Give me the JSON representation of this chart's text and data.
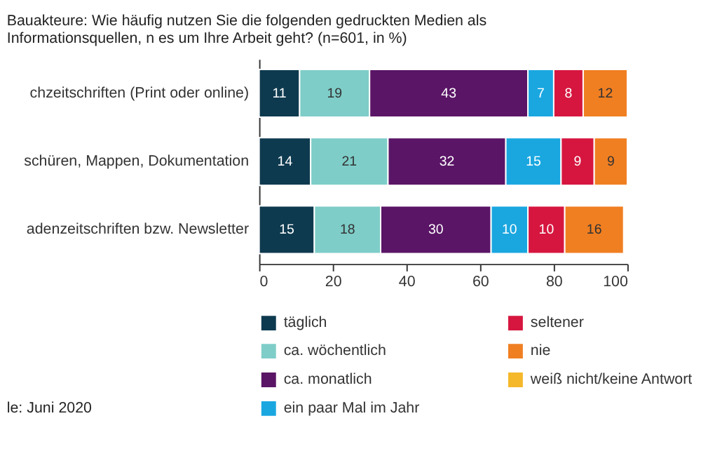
{
  "chart_data": {
    "type": "bar",
    "orientation": "horizontal",
    "stacked": true,
    "title": "Bauakteure: Wie häufig nutzen Sie die folgenden gedruckten Medien als Informationsquellen, n es um Ihre Arbeit geht? (n=601, in %)",
    "categories": [
      "chzeitschriften (Print oder online)",
      "schüren, Mappen, Dokumentation",
      "adenzeitschriften bzw. Newsletter"
    ],
    "series": [
      {
        "name": "täglich",
        "color": "#0e3a4f",
        "values": [
          11,
          14,
          15
        ]
      },
      {
        "name": "ca. wöchentlich",
        "color": "#7ecdc8",
        "values": [
          19,
          21,
          18
        ]
      },
      {
        "name": "ca. monatlich",
        "color": "#5a1566",
        "values": [
          43,
          32,
          30
        ]
      },
      {
        "name": "ein paar Mal im Jahr",
        "color": "#1aa7e0",
        "values": [
          7,
          15,
          10
        ]
      },
      {
        "name": "seltener",
        "color": "#d6163f",
        "values": [
          8,
          9,
          10
        ]
      },
      {
        "name": "nie",
        "color": "#f07f22",
        "values": [
          12,
          9,
          16
        ]
      },
      {
        "name": "weiß nicht/keine Antwort",
        "color": "#f5b82a",
        "values": [
          null,
          null,
          null
        ]
      }
    ],
    "xlim": [
      0,
      100
    ],
    "xticks": [
      0,
      20,
      40,
      60,
      80,
      100
    ],
    "data_labels": true,
    "grid": false,
    "legend": "bottom",
    "annotations": [
      "le: Juni 2020"
    ]
  }
}
